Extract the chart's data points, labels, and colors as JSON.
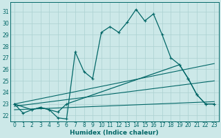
{
  "xlabel": "Humidex (Indice chaleur)",
  "bg_color": "#cce8e8",
  "grid_color": "#aad0d0",
  "line_color": "#006666",
  "xlim": [
    -0.5,
    23.5
  ],
  "ylim": [
    21.5,
    31.8
  ],
  "xticks": [
    0,
    1,
    2,
    3,
    4,
    5,
    6,
    7,
    8,
    9,
    10,
    11,
    12,
    13,
    14,
    15,
    16,
    17,
    18,
    19,
    20,
    21,
    22,
    23
  ],
  "yticks": [
    22,
    23,
    24,
    25,
    26,
    27,
    28,
    29,
    30,
    31
  ],
  "line1_x": [
    0,
    1,
    2,
    3,
    4,
    5,
    6,
    7,
    8,
    9,
    10,
    11,
    12,
    13,
    14,
    15,
    16,
    17,
    18,
    19,
    20,
    21,
    22,
    23
  ],
  "line1_y": [
    23.0,
    22.2,
    22.5,
    22.7,
    22.5,
    21.8,
    21.7,
    27.5,
    25.8,
    25.2,
    29.2,
    29.7,
    29.2,
    30.1,
    31.2,
    30.2,
    30.8,
    29.0,
    27.0,
    26.4,
    25.2,
    23.8,
    23.0,
    23.0
  ],
  "line2_x": [
    0,
    2,
    3,
    4,
    5,
    6,
    19,
    20,
    21,
    22,
    23
  ],
  "line2_y": [
    23.0,
    22.5,
    22.7,
    22.5,
    22.3,
    23.0,
    26.4,
    25.2,
    23.8,
    23.0,
    23.0
  ],
  "line3_x": [
    0,
    23
  ],
  "line3_y": [
    23.0,
    26.5
  ],
  "line4_x": [
    0,
    23
  ],
  "line4_y": [
    22.8,
    25.0
  ],
  "line5_x": [
    0,
    23
  ],
  "line5_y": [
    22.5,
    23.2
  ]
}
